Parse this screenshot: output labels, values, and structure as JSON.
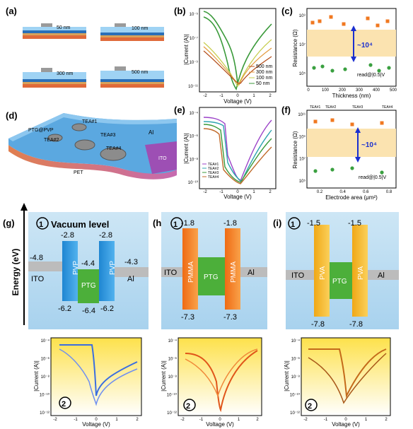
{
  "colors": {
    "blue_layer": "#3b8fd4",
    "orange": "#f07820",
    "green": "#3aa040",
    "yellow": "#f5c12a",
    "light_orange_band": "#fbe3b0"
  },
  "panel_labels": {
    "a": "(a)",
    "b": "(b)",
    "c": "(c)",
    "d": "(d)",
    "e": "(e)",
    "f": "(f)",
    "g": "(g)",
    "h": "(h)",
    "i": "(i)"
  },
  "panel_a": {
    "thicknesses": [
      "50 nm",
      "100 nm",
      "300 nm",
      "500 nm"
    ]
  },
  "panel_b": {
    "ylabel": "|Current (A)|",
    "xlabel": "Voltage (V)",
    "yticks": [
      "10⁻⁵",
      "10⁻⁷",
      "10⁻⁹",
      "10⁻¹¹"
    ],
    "xticks": [
      "-2",
      "-1",
      "0",
      "1",
      "2"
    ],
    "legend": [
      "500 nm",
      "300 nm",
      "100 nm",
      "50 nm"
    ]
  },
  "panel_c": {
    "ylabel": "Resistance (Ω)",
    "xlabel": "Thickness (nm)",
    "yticks": [
      "10⁹",
      "10⁷",
      "10⁵"
    ],
    "xticks": [
      "0",
      "100",
      "200",
      "300",
      "400",
      "500"
    ],
    "ratio": "~10⁴",
    "note": "read@|0.5|V"
  },
  "panel_d": {
    "labels": [
      "PTG@PVP",
      "TEA#1",
      "TEA#2",
      "TEA#3",
      "TEA#4",
      "Al",
      "ITO",
      "PET"
    ]
  },
  "panel_e": {
    "ylabel": "|Current (A)|",
    "xlabel": "Voltage (V)",
    "yticks": [
      "10⁻⁴",
      "10⁻⁶",
      "10⁻⁸",
      "10⁻¹⁰"
    ],
    "xticks": [
      "-2",
      "-1",
      "0",
      "1",
      "2"
    ],
    "legend": [
      "TEA#1",
      "TEA#2",
      "TEA#3",
      "TEA#4"
    ]
  },
  "panel_f": {
    "ylabel": "Resistance (Ω)",
    "xlabel": "Electrode area (μm²)",
    "yticks": [
      "10¹¹",
      "10⁹",
      "10⁷",
      "10⁵"
    ],
    "xticks": [
      "0.2",
      "0.4",
      "0.6",
      "0.8"
    ],
    "top_labels": [
      "TEA#1",
      "TEA#2",
      "TEA#3",
      "TEA#4"
    ],
    "ratio": "~10⁴",
    "note": "read@|0.5|V"
  },
  "energy": {
    "axis_label": "Energy (eV)",
    "vacuum": "Vacuum level",
    "circle1": "①",
    "circle2": "②",
    "g": {
      "ito": "ITO",
      "al": "Al",
      "ito_val": "-4.8",
      "al_val": "-4.3",
      "ptg_top": "-4.4",
      "ptg_bot": "-6.4",
      "left_top": "-2.8",
      "left_bot": "-6.2",
      "right_top": "-2.8",
      "right_bot": "-6.2",
      "barrier": "PVP",
      "mid": "PTG"
    },
    "h": {
      "ito": "ITO",
      "al": "Al",
      "left_top": "-1.8",
      "left_bot": "-7.3",
      "right_top": "-1.8",
      "right_bot": "-7.3",
      "barrier": "PMMA",
      "mid": "PTG"
    },
    "i": {
      "ito": "ITO",
      "al": "Al",
      "left_top": "-1.5",
      "left_bot": "-7.8",
      "right_top": "-1.5",
      "right_bot": "-7.8",
      "barrier": "PVA",
      "mid": "PTG"
    }
  },
  "iv_bottom": {
    "ylabel": "|Current (A)|",
    "xlabel": "Voltage (V)",
    "g_yticks": [
      "10⁻⁴",
      "10⁻⁶",
      "10⁻⁸",
      "10⁻¹⁰",
      "10⁻¹²"
    ],
    "h_yticks": [
      "10⁻⁴",
      "10⁻⁶",
      "10⁻⁸",
      "10⁻¹⁰",
      "10⁻¹²"
    ],
    "i_yticks": [
      "10⁻⁴",
      "10⁻⁶",
      "10⁻⁸",
      "10⁻¹⁰",
      "10⁻¹²"
    ],
    "xticks": [
      "-2",
      "-1",
      "0",
      "1",
      "2"
    ]
  }
}
